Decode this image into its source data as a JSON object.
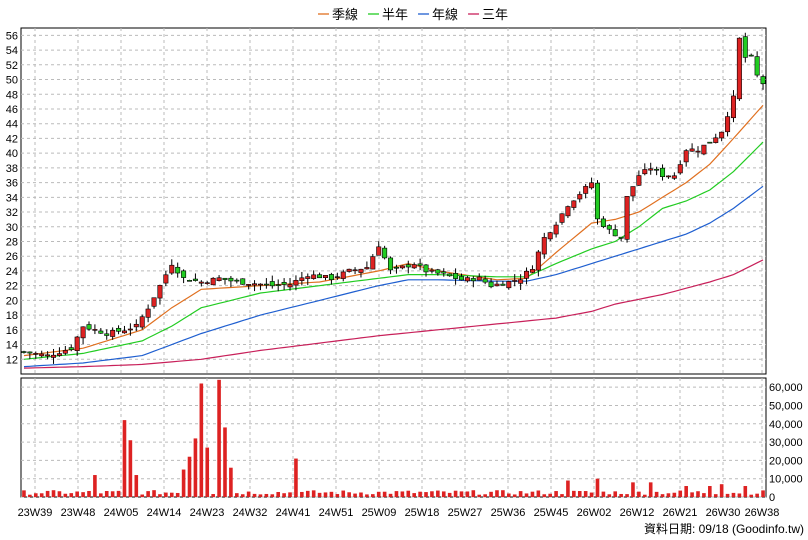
{
  "legend": [
    {
      "label": "季線",
      "color": "#e07020"
    },
    {
      "label": "半年",
      "color": "#22cc22"
    },
    {
      "label": "年線",
      "color": "#1f5fd0"
    },
    {
      "label": "三年",
      "color": "#c8205a"
    }
  ],
  "footer": "資料日期: 09/18 (Goodinfo.tw)",
  "chart_data": [
    {
      "type": "candlestick",
      "ylim": [
        10,
        57
      ],
      "yticks": [
        12,
        14,
        16,
        18,
        20,
        22,
        24,
        26,
        28,
        30,
        32,
        34,
        36,
        38,
        40,
        42,
        44,
        46,
        48,
        50,
        52,
        54,
        56
      ],
      "xlabels": [
        "23W39",
        "23W48",
        "24W05",
        "24W14",
        "24W23",
        "24W32",
        "24W41",
        "24W51",
        "25W09",
        "25W18",
        "25W27",
        "25W36",
        "25W45",
        "26W02",
        "26W12",
        "26W21",
        "26W30",
        "26W38"
      ],
      "grid": true,
      "colors": {
        "up": "#dd2222",
        "down": "#22cc22"
      },
      "price_keyframes": [
        [
          0,
          13.0
        ],
        [
          4,
          12.5
        ],
        [
          8,
          13.5
        ],
        [
          10,
          16.5
        ],
        [
          14,
          15.5
        ],
        [
          17,
          16.0
        ],
        [
          19,
          16.5
        ],
        [
          21,
          19.0
        ],
        [
          23,
          22.0
        ],
        [
          25,
          25.0
        ],
        [
          27,
          23.0
        ],
        [
          30,
          22.5
        ],
        [
          33,
          23.0
        ],
        [
          36,
          22.5
        ],
        [
          39,
          22.3
        ],
        [
          42,
          22.0
        ],
        [
          45,
          22.2
        ],
        [
          48,
          23.5
        ],
        [
          52,
          23.0
        ],
        [
          55,
          24.0
        ],
        [
          58,
          24.5
        ],
        [
          60,
          27.5
        ],
        [
          62,
          24.0
        ],
        [
          66,
          25.0
        ],
        [
          68,
          24.0
        ],
        [
          71,
          23.5
        ],
        [
          74,
          22.8
        ],
        [
          77,
          23.0
        ],
        [
          79,
          22.0
        ],
        [
          82,
          22.5
        ],
        [
          84,
          23.0
        ],
        [
          86,
          24.5
        ],
        [
          87,
          26.5
        ],
        [
          88,
          28.5
        ],
        [
          90,
          30.5
        ],
        [
          92,
          33.0
        ],
        [
          94,
          34.5
        ],
        [
          96,
          36.0
        ],
        [
          97,
          31.0
        ],
        [
          99,
          29.5
        ],
        [
          101,
          28.5
        ],
        [
          102,
          34.0
        ],
        [
          104,
          37.0
        ],
        [
          106,
          38.0
        ],
        [
          108,
          37.0
        ],
        [
          110,
          37.0
        ],
        [
          112,
          40.5
        ],
        [
          114,
          40.5
        ],
        [
          116,
          41.5
        ],
        [
          118,
          43.0
        ],
        [
          120,
          47.5
        ],
        [
          121,
          55.5
        ],
        [
          122,
          53.0
        ],
        [
          123,
          53.0
        ],
        [
          124,
          50.5
        ],
        [
          125,
          49.5
        ]
      ],
      "moving_averages": [
        {
          "name": "季線",
          "color": "#e07020",
          "values": [
            [
              0,
              12.5
            ],
            [
              10,
              13.5
            ],
            [
              20,
              16.0
            ],
            [
              25,
              19.0
            ],
            [
              30,
              21.5
            ],
            [
              40,
              22.0
            ],
            [
              50,
              22.5
            ],
            [
              60,
              24.0
            ],
            [
              65,
              25.0
            ],
            [
              70,
              24.0
            ],
            [
              80,
              22.8
            ],
            [
              85,
              23.0
            ],
            [
              90,
              26.5
            ],
            [
              96,
              30.5
            ],
            [
              100,
              31.0
            ],
            [
              104,
              32.0
            ],
            [
              108,
              34.0
            ],
            [
              112,
              36.0
            ],
            [
              116,
              38.5
            ],
            [
              120,
              42.0
            ],
            [
              125,
              46.5
            ]
          ]
        },
        {
          "name": "半年",
          "color": "#22cc22",
          "values": [
            [
              0,
              12.0
            ],
            [
              10,
              12.8
            ],
            [
              20,
              14.5
            ],
            [
              25,
              16.5
            ],
            [
              30,
              19.0
            ],
            [
              40,
              21.0
            ],
            [
              50,
              22.0
            ],
            [
              60,
              23.0
            ],
            [
              65,
              23.5
            ],
            [
              70,
              23.5
            ],
            [
              80,
              23.2
            ],
            [
              85,
              23.2
            ],
            [
              90,
              25.0
            ],
            [
              96,
              27.0
            ],
            [
              100,
              28.0
            ],
            [
              104,
              30.0
            ],
            [
              108,
              32.5
            ],
            [
              112,
              33.5
            ],
            [
              116,
              35.0
            ],
            [
              120,
              37.5
            ],
            [
              125,
              41.5
            ]
          ]
        },
        {
          "name": "年線",
          "color": "#1f5fd0",
          "values": [
            [
              0,
              11.0
            ],
            [
              10,
              11.5
            ],
            [
              20,
              12.5
            ],
            [
              25,
              14.0
            ],
            [
              30,
              15.5
            ],
            [
              40,
              18.0
            ],
            [
              50,
              20.0
            ],
            [
              60,
              22.0
            ],
            [
              65,
              22.8
            ],
            [
              70,
              22.8
            ],
            [
              80,
              22.6
            ],
            [
              85,
              22.6
            ],
            [
              90,
              23.5
            ],
            [
              96,
              25.0
            ],
            [
              100,
              26.0
            ],
            [
              104,
              27.0
            ],
            [
              108,
              28.0
            ],
            [
              112,
              29.0
            ],
            [
              116,
              30.5
            ],
            [
              120,
              32.5
            ],
            [
              125,
              35.5
            ]
          ]
        },
        {
          "name": "三年",
          "color": "#c8205a",
          "values": [
            [
              0,
              10.8
            ],
            [
              10,
              11.0
            ],
            [
              20,
              11.3
            ],
            [
              30,
              12.0
            ],
            [
              40,
              13.2
            ],
            [
              50,
              14.2
            ],
            [
              60,
              15.2
            ],
            [
              70,
              16.0
            ],
            [
              80,
              16.8
            ],
            [
              90,
              17.6
            ],
            [
              96,
              18.5
            ],
            [
              100,
              19.5
            ],
            [
              108,
              20.8
            ],
            [
              116,
              22.5
            ],
            [
              120,
              23.5
            ],
            [
              125,
              25.5
            ]
          ]
        }
      ]
    },
    {
      "type": "bar",
      "ylim": [
        0,
        65000
      ],
      "yticks": [
        0,
        10000,
        20000,
        30000,
        40000,
        50000,
        60000
      ],
      "ytick_labels": [
        "0",
        "10,000",
        "20,000",
        "30,000",
        "40,000",
        "50,000",
        "60,000"
      ],
      "color": "#dd2222",
      "volume_peaks": [
        [
          12,
          12000
        ],
        [
          17,
          42000
        ],
        [
          18,
          31000
        ],
        [
          19,
          12000
        ],
        [
          27,
          15000
        ],
        [
          28,
          22000
        ],
        [
          29,
          32000
        ],
        [
          30,
          62000
        ],
        [
          31,
          27000
        ],
        [
          33,
          64000
        ],
        [
          34,
          38000
        ],
        [
          35,
          16000
        ],
        [
          46,
          21000
        ],
        [
          92,
          9000
        ],
        [
          97,
          10000
        ],
        [
          103,
          8000
        ],
        [
          106,
          8000
        ],
        [
          112,
          6000
        ],
        [
          116,
          6000
        ],
        [
          118,
          7000
        ],
        [
          122,
          6000
        ]
      ],
      "volume_base": 2500
    }
  ]
}
